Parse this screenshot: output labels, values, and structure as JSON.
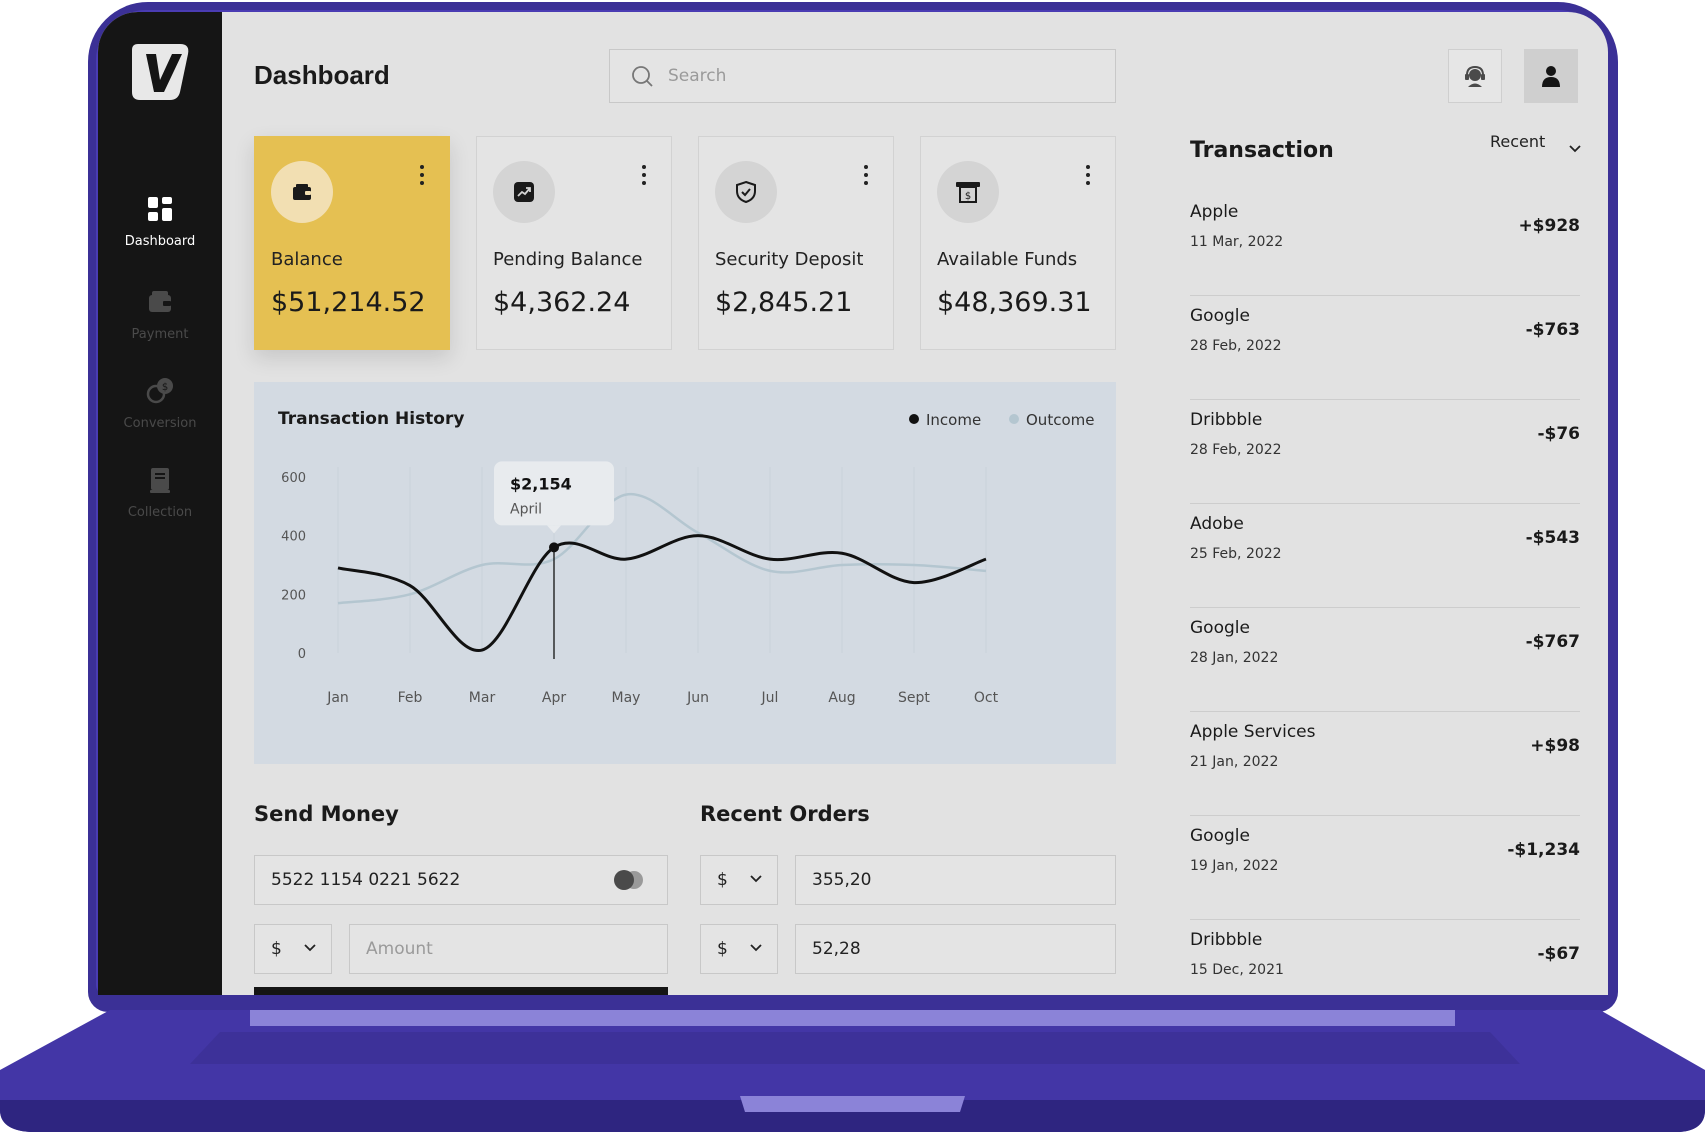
{
  "header": {
    "title": "Dashboard",
    "search_placeholder": "Search"
  },
  "sidebar": {
    "items": [
      {
        "label": "Dashboard",
        "icon": "grid-icon",
        "active": true
      },
      {
        "label": "Payment",
        "icon": "wallet-icon",
        "active": false
      },
      {
        "label": "Conversion",
        "icon": "coins-icon",
        "active": false
      },
      {
        "label": "Collection",
        "icon": "book-icon",
        "active": false
      }
    ]
  },
  "cards": [
    {
      "label": "Balance",
      "value": "$51,214.52",
      "icon": "wallet-icon"
    },
    {
      "label": "Pending Balance",
      "value": "$4,362.24",
      "icon": "trend-icon"
    },
    {
      "label": "Security Deposit",
      "value": "$2,845.21",
      "icon": "shield-icon"
    },
    {
      "label": "Available Funds",
      "value": "$48,369.31",
      "icon": "atm-icon"
    }
  ],
  "chart_data": {
    "type": "line",
    "title": "Transaction History",
    "categories": [
      "Jan",
      "Feb",
      "Mar",
      "Apr",
      "May",
      "Jun",
      "Jul",
      "Aug",
      "Sept",
      "Oct"
    ],
    "y_ticks": [
      "0",
      "200",
      "400",
      "600"
    ],
    "ylim": [
      0,
      600
    ],
    "legend": [
      "Income",
      "Outcome"
    ],
    "legend_position": "top-right",
    "series": [
      {
        "name": "Income",
        "color": "#111111",
        "values": [
          290,
          230,
          10,
          360,
          320,
          400,
          320,
          340,
          240,
          320
        ]
      },
      {
        "name": "Outcome",
        "color": "#b4c6d0",
        "values": [
          170,
          200,
          300,
          320,
          540,
          410,
          280,
          300,
          300,
          280
        ]
      }
    ],
    "tooltip": {
      "value": "$2,154",
      "label": "April"
    }
  },
  "send_money": {
    "title": "Send Money",
    "card_number": "5522 1154 0221 5622",
    "currency": "$",
    "amount_placeholder": "Amount"
  },
  "recent_orders": {
    "title": "Recent Orders",
    "rows": [
      {
        "currency": "$",
        "value": "355,20"
      },
      {
        "currency": "$",
        "value": "52,28"
      }
    ]
  },
  "transactions": {
    "title": "Transaction",
    "filter": "Recent",
    "items": [
      {
        "name": "Apple",
        "date": "11 Mar, 2022",
        "amount": "+$928"
      },
      {
        "name": "Google",
        "date": "28 Feb, 2022",
        "amount": "-$763"
      },
      {
        "name": "Dribbble",
        "date": "28 Feb, 2022",
        "amount": "-$76"
      },
      {
        "name": "Adobe",
        "date": "25 Feb, 2022",
        "amount": "-$543"
      },
      {
        "name": "Google",
        "date": "28 Jan, 2022",
        "amount": "-$767"
      },
      {
        "name": "Apple Services",
        "date": "21 Jan, 2022",
        "amount": "+$98"
      },
      {
        "name": "Google",
        "date": "19 Jan, 2022",
        "amount": "-$1,234"
      },
      {
        "name": "Dribbble",
        "date": "15 Dec, 2021",
        "amount": "-$67"
      }
    ]
  },
  "colors": {
    "accent": "#e5c052",
    "laptop": "#3b3096",
    "sidebar": "#151515",
    "chart_bg": "#d3dae2"
  }
}
